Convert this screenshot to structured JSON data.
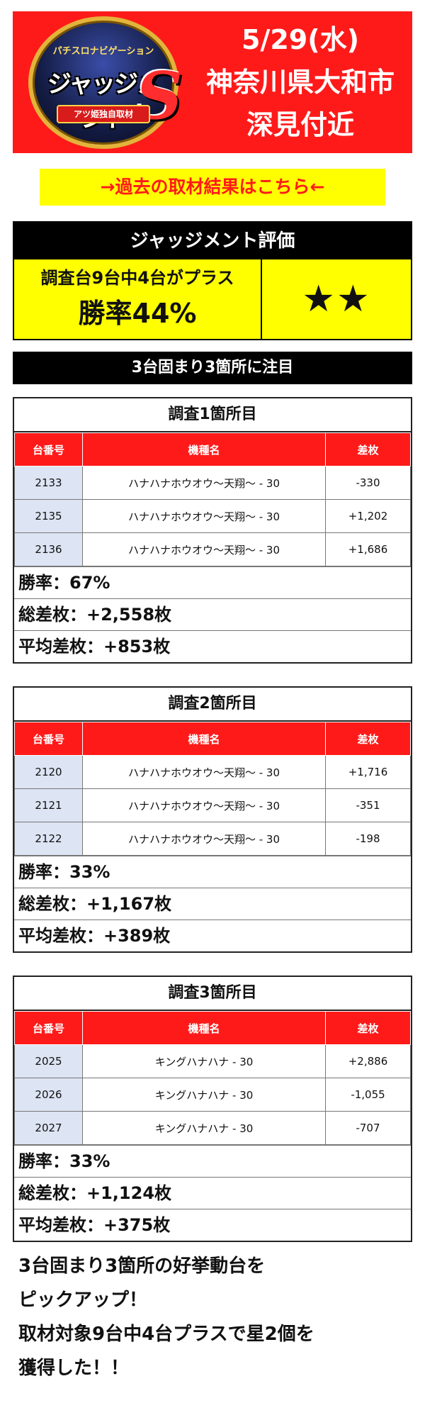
{
  "header": {
    "logo": {
      "sub": "パチスロナビゲーション",
      "text": "ジャッジメント",
      "s": "S",
      "ribbon": "アツ姫独自取材"
    },
    "date": "5/29(水)",
    "location_line1": "神奈川県大和市",
    "location_line2": "深見付近",
    "bg_color": "#ff1a1a"
  },
  "link_banner": {
    "label": "→過去の取材結果はこちら←"
  },
  "evaluation": {
    "title": "ジャッジメント評価",
    "summary": "調査台9台中4台がプラス",
    "win_rate": "勝率44%",
    "stars": "★★"
  },
  "notice": "3台固まり3箇所に注目",
  "table_headers": {
    "number": "台番号",
    "model": "機種名",
    "diff": "差枚"
  },
  "surveys": [
    {
      "title": "調査1箇所目",
      "rows": [
        {
          "number": "2133",
          "model": "ハナハナホウオウ～天翔～ - 30",
          "diff": "-330"
        },
        {
          "number": "2135",
          "model": "ハナハナホウオウ～天翔～ - 30",
          "diff": "+1,202"
        },
        {
          "number": "2136",
          "model": "ハナハナホウオウ～天翔～ - 30",
          "diff": "+1,686"
        }
      ],
      "win_rate": "勝率：67%",
      "total": "総差枚：+2,558枚",
      "average": "平均差枚：+853枚"
    },
    {
      "title": "調査2箇所目",
      "rows": [
        {
          "number": "2120",
          "model": "ハナハナホウオウ～天翔～ - 30",
          "diff": "+1,716"
        },
        {
          "number": "2121",
          "model": "ハナハナホウオウ～天翔～ - 30",
          "diff": "-351"
        },
        {
          "number": "2122",
          "model": "ハナハナホウオウ～天翔～ - 30",
          "diff": "-198"
        }
      ],
      "win_rate": "勝率：33%",
      "total": "総差枚：+1,167枚",
      "average": "平均差枚：+389枚"
    },
    {
      "title": "調査3箇所目",
      "rows": [
        {
          "number": "2025",
          "model": "キングハナハナ - 30",
          "diff": "+2,886"
        },
        {
          "number": "2026",
          "model": "キングハナハナ - 30",
          "diff": "-1,055"
        },
        {
          "number": "2027",
          "model": "キングハナハナ - 30",
          "diff": "-707"
        }
      ],
      "win_rate": "勝率：33%",
      "total": "総差枚：+1,124枚",
      "average": "平均差枚：+375枚"
    }
  ],
  "footer": {
    "lines": [
      "3台固まり3箇所の好挙動台を",
      "ピックアップ！",
      "取材対象9台中4台プラスで星2個を",
      "獲得した！！"
    ]
  }
}
